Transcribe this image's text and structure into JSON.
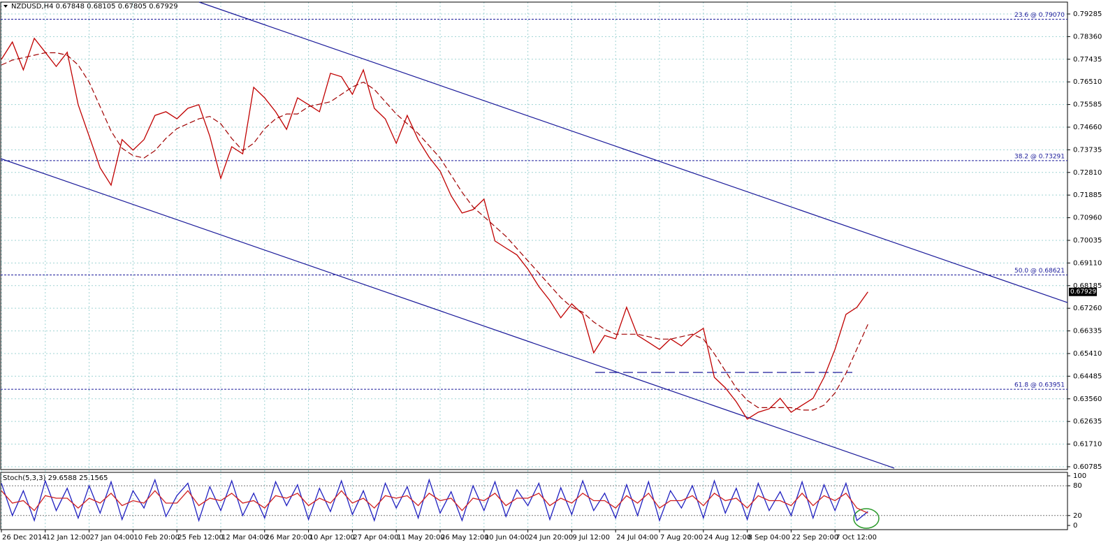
{
  "chart_data": [
    {
      "type": "line",
      "title": "NZDUSD,H4  0.67848 0.68105 0.67805 0.67929",
      "categories": [
        "26 Dec 2014",
        null,
        null,
        null,
        "12 Jan 12:00",
        null,
        null,
        null,
        "27 Jan 04:00",
        null,
        null,
        null,
        "10 Feb 20:00",
        null,
        null,
        null,
        "25 Feb 12:00",
        null,
        null,
        null,
        "12 Mar 04:00",
        null,
        null,
        null,
        "26 Mar 20:00",
        null,
        null,
        null,
        "10 Apr 12:00",
        null,
        null,
        null,
        "27 Apr 04:00",
        null,
        null,
        null,
        "11 May 20:00",
        null,
        null,
        null,
        "26 May 12:00",
        null,
        null,
        null,
        "10 Jun 04:00",
        null,
        null,
        null,
        "24 Jun 20:00",
        null,
        null,
        null,
        "9 Jul 12:00",
        null,
        null,
        null,
        "24 Jul 04:00",
        null,
        null,
        null,
        "7 Aug 20:00",
        null,
        null,
        null,
        "24 Aug 12:00",
        null,
        null,
        null,
        "8 Sep 04:00",
        null,
        null,
        null,
        "22 Sep 20:00",
        null,
        null,
        null,
        "7 Oct 12:00",
        null,
        null,
        null
      ],
      "series": [
        {
          "color": "#c00000",
          "values": [
            0.7743,
            0.7814,
            0.77,
            0.7829,
            0.7772,
            0.7714,
            0.7772,
            0.7558,
            0.7429,
            0.73,
            0.7229,
            0.7415,
            0.7372,
            0.7415,
            0.7514,
            0.7529,
            0.75,
            0.7543,
            0.7558,
            0.7429,
            0.7257,
            0.7386,
            0.7357,
            0.7629,
            0.7586,
            0.7529,
            0.7457,
            0.7586,
            0.7558,
            0.7529,
            0.7686,
            0.7672,
            0.76,
            0.77,
            0.7543,
            0.75,
            0.74,
            0.7514,
            0.7415,
            0.7343,
            0.7286,
            0.7186,
            0.7115,
            0.7129,
            0.7172,
            0.7001,
            0.6972,
            0.6944,
            0.6886,
            0.6815,
            0.6758,
            0.6687,
            0.6744,
            0.6701,
            0.6544,
            0.6615,
            0.6601,
            0.673,
            0.6615,
            0.6587,
            0.6558,
            0.6601,
            0.6572,
            0.6615,
            0.6644,
            0.6444,
            0.6401,
            0.6344,
            0.6273,
            0.6301,
            0.6315,
            0.6358,
            0.6301,
            0.633,
            0.6358,
            0.6444,
            0.6558,
            0.6701,
            0.673,
            0.6793
          ]
        },
        {
          "color": "#a00000",
          "dashed": true,
          "values": [
            0.772,
            0.774,
            0.775,
            0.776,
            0.777,
            0.777,
            0.776,
            0.772,
            0.765,
            0.755,
            0.745,
            0.738,
            0.735,
            0.734,
            0.737,
            0.742,
            0.746,
            0.748,
            0.75,
            0.751,
            0.748,
            0.742,
            0.737,
            0.74,
            0.746,
            0.75,
            0.752,
            0.752,
            0.755,
            0.756,
            0.757,
            0.76,
            0.763,
            0.765,
            0.762,
            0.757,
            0.752,
            0.748,
            0.744,
            0.739,
            0.734,
            0.727,
            0.72,
            0.714,
            0.71,
            0.706,
            0.702,
            0.697,
            0.692,
            0.687,
            0.682,
            0.677,
            0.673,
            0.671,
            0.667,
            0.664,
            0.662,
            0.662,
            0.662,
            0.661,
            0.66,
            0.66,
            0.661,
            0.662,
            0.66,
            0.654,
            0.647,
            0.64,
            0.635,
            0.632,
            0.632,
            0.632,
            0.632,
            0.631,
            0.631,
            0.633,
            0.638,
            0.646,
            0.656,
            0.666
          ]
        }
      ],
      "ylim": [
        0.6067,
        0.7977
      ],
      "yticks": [
        0.79285,
        {
          "value": 0.7836,
          "label": "0.78360"
        },
        0.77435,
        {
          "value": 0.7651,
          "label": "0.76510"
        },
        0.75585,
        {
          "value": 0.7466,
          "label": "0.74660"
        },
        0.73735,
        {
          "value": 0.7281,
          "label": "0.72810"
        },
        0.71885,
        {
          "value": 0.7096,
          "label": "0.70960"
        },
        0.70035,
        {
          "value": 0.6911,
          "label": "0.69110"
        },
        0.68185,
        {
          "value": 0.6726,
          "label": "0.67260"
        },
        0.66335,
        {
          "value": 0.6541,
          "label": "0.65410"
        },
        0.64485,
        {
          "value": 0.6356,
          "label": "0.63560"
        },
        0.62635,
        {
          "value": 0.6171,
          "label": "0.61710"
        },
        0.60785
      ],
      "levels": [
        {
          "label": "23.6 @ 0.79070",
          "value": 0.7907
        },
        {
          "label": "38.2 @ 0.73291",
          "value": 0.73291
        },
        {
          "label": "50.0 @ 0.68621",
          "value": 0.68621
        },
        {
          "label": "61.8 @ 0.63951",
          "value": 0.63951
        }
      ],
      "last_price": 0.67929,
      "grid": true
    },
    {
      "type": "line",
      "title": "Stoch(5,3,3) 29.6588 25.1565",
      "series": [
        {
          "color": "#2020c0",
          "values": [
            85,
            20,
            70,
            10,
            90,
            30,
            75,
            15,
            80,
            25,
            88,
            12,
            70,
            35,
            92,
            18,
            60,
            85,
            10,
            78,
            30,
            90,
            20,
            65,
            15,
            88,
            40,
            82,
            12,
            75,
            28,
            90,
            22,
            70,
            10,
            85,
            35,
            78,
            15,
            92,
            25,
            68,
            10,
            80,
            30,
            88,
            18,
            72,
            40,
            85,
            12,
            76,
            22,
            90,
            30,
            65,
            15,
            82,
            20,
            88,
            10,
            70,
            35,
            80,
            15,
            90,
            25,
            75,
            12,
            85,
            30,
            68,
            20,
            88,
            15,
            82,
            30,
            85,
            10,
            28
          ]
        },
        {
          "color": "#d02020",
          "values": [
            70,
            45,
            50,
            30,
            60,
            55,
            55,
            35,
            55,
            45,
            65,
            40,
            50,
            45,
            70,
            45,
            45,
            70,
            40,
            55,
            50,
            65,
            45,
            50,
            35,
            60,
            55,
            65,
            40,
            55,
            45,
            70,
            45,
            55,
            35,
            60,
            55,
            60,
            40,
            65,
            50,
            55,
            30,
            55,
            50,
            65,
            40,
            55,
            55,
            65,
            40,
            55,
            45,
            65,
            50,
            50,
            35,
            60,
            45,
            65,
            35,
            50,
            50,
            60,
            40,
            65,
            50,
            55,
            35,
            60,
            50,
            50,
            40,
            65,
            40,
            60,
            50,
            65,
            35,
            25
          ]
        }
      ],
      "ylim": [
        0,
        100
      ],
      "yticks": [
        100,
        80,
        20,
        0
      ],
      "levels_dotted": true
    }
  ]
}
